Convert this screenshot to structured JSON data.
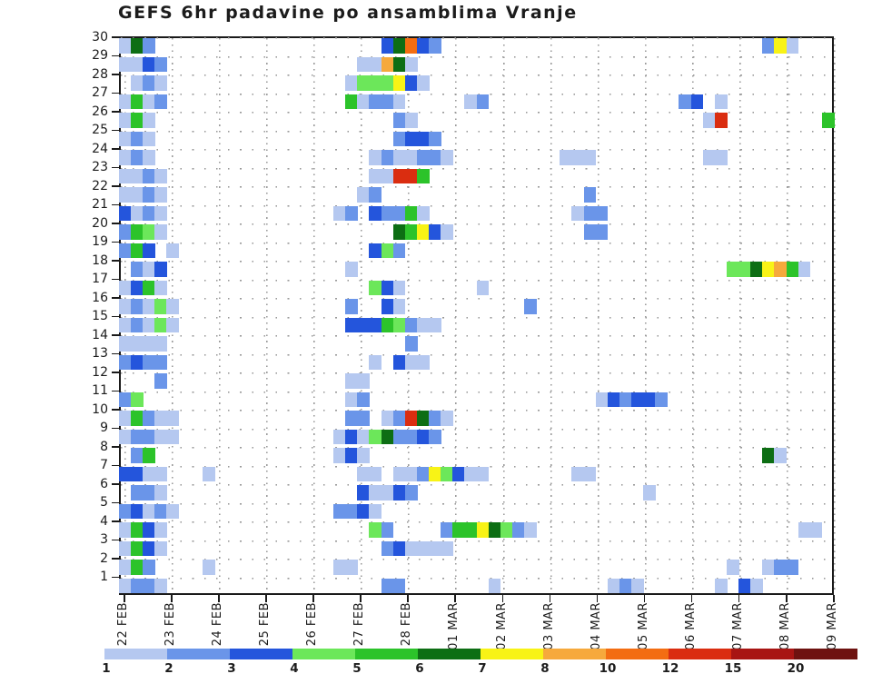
{
  "title": "GEFS 6hr padavine po ansamblima Vranje",
  "y_axis": {
    "labels": [
      "30",
      "29",
      "28",
      "27",
      "26",
      "25",
      "24",
      "23",
      "22",
      "21",
      "20",
      "19",
      "18",
      "17",
      "16",
      "15",
      "14",
      "13",
      "12",
      "11",
      "10",
      "9",
      "8",
      "7",
      "6",
      "5",
      "4",
      "3",
      "2",
      "1"
    ]
  },
  "x_axis": {
    "labels": [
      "22 FEB",
      "23 FEB",
      "24 FEB",
      "25 FEB",
      "26 FEB",
      "27 FEB",
      "28 FEB",
      "01 MAR",
      "02 MAR",
      "03 MAR",
      "04 MAR",
      "05 MAR",
      "06 MAR",
      "07 MAR",
      "08 MAR",
      "09 MAR"
    ]
  },
  "colorbar": {
    "labels": [
      "1",
      "2",
      "3",
      "4",
      "5",
      "6",
      "7",
      "8",
      "10",
      "12",
      "15",
      "20"
    ],
    "levels": [
      1,
      2,
      3,
      4,
      5,
      6,
      7,
      8,
      10,
      12,
      15,
      20
    ],
    "colors": [
      "#b5c8f0",
      "#6a95e9",
      "#2455dc",
      "#6ce75a",
      "#2cc32a",
      "#0d6e14",
      "#f8f316",
      "#f6a93c",
      "#f36d12",
      "#da2d10",
      "#a81513",
      "#6e1210"
    ]
  },
  "chart_data": {
    "type": "heatmap",
    "title": "GEFS 6hr padavine po ansamblima Vranje",
    "x_desc": "time, 6-hour steps from 22 FEB to 09 MAR (4 columns per day)",
    "y_desc": "ensemble member 1-30",
    "value_desc": "6hr precipitation (mm), mapped to colorbar level keys",
    "rows": 30,
    "cols": 60,
    "cols_per_day": 4,
    "palette": {
      "1": "#b5c8f0",
      "2": "#6a95e9",
      "3": "#2455dc",
      "4": "#6ce75a",
      "5": "#2cc32a",
      "6": "#0d6e14",
      "7": "#f8f316",
      "8": "#f6a93c",
      "10": "#f36d12",
      "12": "#da2d10",
      "15": "#a81513",
      "20": "#6e1210"
    },
    "cells": [
      [
        30,
        0,
        1
      ],
      [
        30,
        1,
        6
      ],
      [
        30,
        2,
        2
      ],
      [
        30,
        22,
        3
      ],
      [
        30,
        23,
        6
      ],
      [
        30,
        24,
        10
      ],
      [
        30,
        25,
        3
      ],
      [
        30,
        26,
        2
      ],
      [
        30,
        54,
        2
      ],
      [
        30,
        55,
        7
      ],
      [
        30,
        56,
        1
      ],
      [
        29,
        0,
        1
      ],
      [
        29,
        1,
        1
      ],
      [
        29,
        2,
        3
      ],
      [
        29,
        3,
        2
      ],
      [
        29,
        20,
        1
      ],
      [
        29,
        21,
        1
      ],
      [
        29,
        22,
        8
      ],
      [
        29,
        23,
        6
      ],
      [
        29,
        24,
        1
      ],
      [
        28,
        1,
        1
      ],
      [
        28,
        2,
        2
      ],
      [
        28,
        3,
        1
      ],
      [
        28,
        19,
        1
      ],
      [
        28,
        20,
        4
      ],
      [
        28,
        21,
        4
      ],
      [
        28,
        22,
        4
      ],
      [
        28,
        23,
        7
      ],
      [
        28,
        24,
        3
      ],
      [
        28,
        25,
        1
      ],
      [
        27,
        0,
        1
      ],
      [
        27,
        1,
        5
      ],
      [
        27,
        2,
        1
      ],
      [
        27,
        3,
        2
      ],
      [
        27,
        19,
        5
      ],
      [
        27,
        20,
        1
      ],
      [
        27,
        21,
        2
      ],
      [
        27,
        22,
        2
      ],
      [
        27,
        23,
        1
      ],
      [
        27,
        29,
        1
      ],
      [
        27,
        30,
        2
      ],
      [
        27,
        47,
        2
      ],
      [
        27,
        48,
        3
      ],
      [
        27,
        50,
        1
      ],
      [
        26,
        0,
        1
      ],
      [
        26,
        1,
        5
      ],
      [
        26,
        2,
        1
      ],
      [
        26,
        23,
        2
      ],
      [
        26,
        24,
        1
      ],
      [
        26,
        49,
        1
      ],
      [
        26,
        50,
        12
      ],
      [
        26,
        59,
        5
      ],
      [
        25,
        0,
        1
      ],
      [
        25,
        1,
        2
      ],
      [
        25,
        2,
        1
      ],
      [
        25,
        23,
        2
      ],
      [
        25,
        24,
        3
      ],
      [
        25,
        25,
        3
      ],
      [
        25,
        26,
        2
      ],
      [
        24,
        0,
        1
      ],
      [
        24,
        1,
        2
      ],
      [
        24,
        2,
        1
      ],
      [
        24,
        21,
        1
      ],
      [
        24,
        22,
        2
      ],
      [
        24,
        23,
        1
      ],
      [
        24,
        24,
        1
      ],
      [
        24,
        25,
        2
      ],
      [
        24,
        26,
        2
      ],
      [
        24,
        27,
        1
      ],
      [
        24,
        37,
        1
      ],
      [
        24,
        38,
        1
      ],
      [
        24,
        39,
        1
      ],
      [
        24,
        49,
        1
      ],
      [
        24,
        50,
        1
      ],
      [
        23,
        0,
        1
      ],
      [
        23,
        1,
        1
      ],
      [
        23,
        2,
        2
      ],
      [
        23,
        3,
        1
      ],
      [
        23,
        21,
        1
      ],
      [
        23,
        22,
        1
      ],
      [
        23,
        23,
        12
      ],
      [
        23,
        24,
        12
      ],
      [
        23,
        25,
        5
      ],
      [
        22,
        0,
        1
      ],
      [
        22,
        1,
        1
      ],
      [
        22,
        2,
        2
      ],
      [
        22,
        3,
        1
      ],
      [
        22,
        20,
        1
      ],
      [
        22,
        21,
        2
      ],
      [
        22,
        39,
        2
      ],
      [
        21,
        0,
        3
      ],
      [
        21,
        1,
        1
      ],
      [
        21,
        2,
        2
      ],
      [
        21,
        3,
        1
      ],
      [
        21,
        18,
        1
      ],
      [
        21,
        19,
        2
      ],
      [
        21,
        21,
        3
      ],
      [
        21,
        22,
        2
      ],
      [
        21,
        23,
        2
      ],
      [
        21,
        24,
        5
      ],
      [
        21,
        25,
        1
      ],
      [
        21,
        38,
        1
      ],
      [
        21,
        39,
        2
      ],
      [
        21,
        40,
        2
      ],
      [
        20,
        0,
        2
      ],
      [
        20,
        1,
        5
      ],
      [
        20,
        2,
        4
      ],
      [
        20,
        3,
        1
      ],
      [
        20,
        23,
        6
      ],
      [
        20,
        24,
        5
      ],
      [
        20,
        25,
        7
      ],
      [
        20,
        26,
        3
      ],
      [
        20,
        27,
        1
      ],
      [
        20,
        39,
        2
      ],
      [
        20,
        40,
        2
      ],
      [
        19,
        0,
        2
      ],
      [
        19,
        1,
        5
      ],
      [
        19,
        2,
        3
      ],
      [
        19,
        4,
        1
      ],
      [
        19,
        21,
        3
      ],
      [
        19,
        22,
        4
      ],
      [
        19,
        23,
        2
      ],
      [
        18,
        1,
        2
      ],
      [
        18,
        2,
        1
      ],
      [
        18,
        3,
        3
      ],
      [
        18,
        19,
        1
      ],
      [
        18,
        51,
        4
      ],
      [
        18,
        52,
        4
      ],
      [
        18,
        53,
        6
      ],
      [
        18,
        54,
        7
      ],
      [
        18,
        55,
        8
      ],
      [
        18,
        56,
        5
      ],
      [
        18,
        57,
        1
      ],
      [
        17,
        0,
        1
      ],
      [
        17,
        1,
        3
      ],
      [
        17,
        2,
        5
      ],
      [
        17,
        3,
        1
      ],
      [
        17,
        21,
        4
      ],
      [
        17,
        22,
        3
      ],
      [
        17,
        23,
        1
      ],
      [
        17,
        30,
        1
      ],
      [
        16,
        0,
        1
      ],
      [
        16,
        1,
        2
      ],
      [
        16,
        2,
        1
      ],
      [
        16,
        3,
        4
      ],
      [
        16,
        4,
        1
      ],
      [
        16,
        19,
        2
      ],
      [
        16,
        22,
        3
      ],
      [
        16,
        23,
        1
      ],
      [
        16,
        34,
        2
      ],
      [
        15,
        0,
        1
      ],
      [
        15,
        1,
        2
      ],
      [
        15,
        2,
        1
      ],
      [
        15,
        3,
        4
      ],
      [
        15,
        4,
        1
      ],
      [
        15,
        19,
        3
      ],
      [
        15,
        20,
        3
      ],
      [
        15,
        21,
        3
      ],
      [
        15,
        22,
        5
      ],
      [
        15,
        23,
        4
      ],
      [
        15,
        24,
        2
      ],
      [
        15,
        25,
        1
      ],
      [
        15,
        26,
        1
      ],
      [
        14,
        0,
        1
      ],
      [
        14,
        1,
        1
      ],
      [
        14,
        2,
        1
      ],
      [
        14,
        3,
        1
      ],
      [
        14,
        24,
        2
      ],
      [
        13,
        0,
        2
      ],
      [
        13,
        1,
        3
      ],
      [
        13,
        2,
        2
      ],
      [
        13,
        3,
        2
      ],
      [
        13,
        21,
        1
      ],
      [
        13,
        23,
        3
      ],
      [
        13,
        24,
        1
      ],
      [
        13,
        25,
        1
      ],
      [
        12,
        3,
        2
      ],
      [
        12,
        19,
        1
      ],
      [
        12,
        20,
        1
      ],
      [
        11,
        0,
        2
      ],
      [
        11,
        1,
        4
      ],
      [
        11,
        19,
        1
      ],
      [
        11,
        20,
        2
      ],
      [
        11,
        40,
        1
      ],
      [
        11,
        41,
        3
      ],
      [
        11,
        42,
        2
      ],
      [
        11,
        43,
        3
      ],
      [
        11,
        44,
        3
      ],
      [
        11,
        45,
        2
      ],
      [
        10,
        0,
        1
      ],
      [
        10,
        1,
        5
      ],
      [
        10,
        2,
        2
      ],
      [
        10,
        3,
        1
      ],
      [
        10,
        4,
        1
      ],
      [
        10,
        19,
        2
      ],
      [
        10,
        20,
        2
      ],
      [
        10,
        22,
        1
      ],
      [
        10,
        23,
        2
      ],
      [
        10,
        24,
        12
      ],
      [
        10,
        25,
        6
      ],
      [
        10,
        26,
        2
      ],
      [
        10,
        27,
        1
      ],
      [
        9,
        0,
        1
      ],
      [
        9,
        1,
        2
      ],
      [
        9,
        2,
        2
      ],
      [
        9,
        3,
        1
      ],
      [
        9,
        4,
        1
      ],
      [
        9,
        18,
        1
      ],
      [
        9,
        19,
        3
      ],
      [
        9,
        20,
        1
      ],
      [
        9,
        21,
        4
      ],
      [
        9,
        22,
        6
      ],
      [
        9,
        23,
        2
      ],
      [
        9,
        24,
        2
      ],
      [
        9,
        25,
        3
      ],
      [
        9,
        26,
        2
      ],
      [
        8,
        1,
        2
      ],
      [
        8,
        2,
        5
      ],
      [
        8,
        18,
        1
      ],
      [
        8,
        19,
        3
      ],
      [
        8,
        20,
        1
      ],
      [
        8,
        54,
        6
      ],
      [
        8,
        55,
        1
      ],
      [
        7,
        0,
        3
      ],
      [
        7,
        1,
        3
      ],
      [
        7,
        2,
        1
      ],
      [
        7,
        3,
        1
      ],
      [
        7,
        7,
        1
      ],
      [
        7,
        20,
        1
      ],
      [
        7,
        21,
        1
      ],
      [
        7,
        23,
        1
      ],
      [
        7,
        24,
        1
      ],
      [
        7,
        25,
        2
      ],
      [
        7,
        26,
        7
      ],
      [
        7,
        27,
        4
      ],
      [
        7,
        28,
        3
      ],
      [
        7,
        29,
        1
      ],
      [
        7,
        30,
        1
      ],
      [
        7,
        38,
        1
      ],
      [
        7,
        39,
        1
      ],
      [
        6,
        1,
        2
      ],
      [
        6,
        2,
        2
      ],
      [
        6,
        3,
        1
      ],
      [
        6,
        20,
        3
      ],
      [
        6,
        21,
        1
      ],
      [
        6,
        22,
        1
      ],
      [
        6,
        23,
        3
      ],
      [
        6,
        24,
        2
      ],
      [
        6,
        44,
        1
      ],
      [
        5,
        0,
        2
      ],
      [
        5,
        1,
        3
      ],
      [
        5,
        2,
        1
      ],
      [
        5,
        3,
        2
      ],
      [
        5,
        4,
        1
      ],
      [
        5,
        18,
        2
      ],
      [
        5,
        19,
        2
      ],
      [
        5,
        20,
        3
      ],
      [
        5,
        21,
        1
      ],
      [
        4,
        0,
        1
      ],
      [
        4,
        1,
        5
      ],
      [
        4,
        2,
        3
      ],
      [
        4,
        3,
        1
      ],
      [
        4,
        21,
        4
      ],
      [
        4,
        22,
        2
      ],
      [
        4,
        27,
        2
      ],
      [
        4,
        28,
        5
      ],
      [
        4,
        29,
        5
      ],
      [
        4,
        30,
        7
      ],
      [
        4,
        31,
        6
      ],
      [
        4,
        32,
        4
      ],
      [
        4,
        33,
        2
      ],
      [
        4,
        34,
        1
      ],
      [
        4,
        57,
        1
      ],
      [
        4,
        58,
        1
      ],
      [
        3,
        0,
        1
      ],
      [
        3,
        1,
        5
      ],
      [
        3,
        2,
        3
      ],
      [
        3,
        3,
        1
      ],
      [
        3,
        22,
        2
      ],
      [
        3,
        23,
        3
      ],
      [
        3,
        24,
        1
      ],
      [
        3,
        25,
        1
      ],
      [
        3,
        26,
        1
      ],
      [
        3,
        27,
        1
      ],
      [
        2,
        0,
        1
      ],
      [
        2,
        1,
        5
      ],
      [
        2,
        2,
        2
      ],
      [
        2,
        7,
        1
      ],
      [
        2,
        18,
        1
      ],
      [
        2,
        19,
        1
      ],
      [
        2,
        51,
        1
      ],
      [
        2,
        54,
        1
      ],
      [
        2,
        55,
        2
      ],
      [
        2,
        56,
        2
      ],
      [
        1,
        0,
        1
      ],
      [
        1,
        1,
        2
      ],
      [
        1,
        2,
        2
      ],
      [
        1,
        3,
        1
      ],
      [
        1,
        22,
        2
      ],
      [
        1,
        23,
        2
      ],
      [
        1,
        31,
        1
      ],
      [
        1,
        41,
        1
      ],
      [
        1,
        42,
        2
      ],
      [
        1,
        43,
        1
      ],
      [
        1,
        50,
        1
      ],
      [
        1,
        52,
        3
      ],
      [
        1,
        53,
        1
      ]
    ]
  }
}
